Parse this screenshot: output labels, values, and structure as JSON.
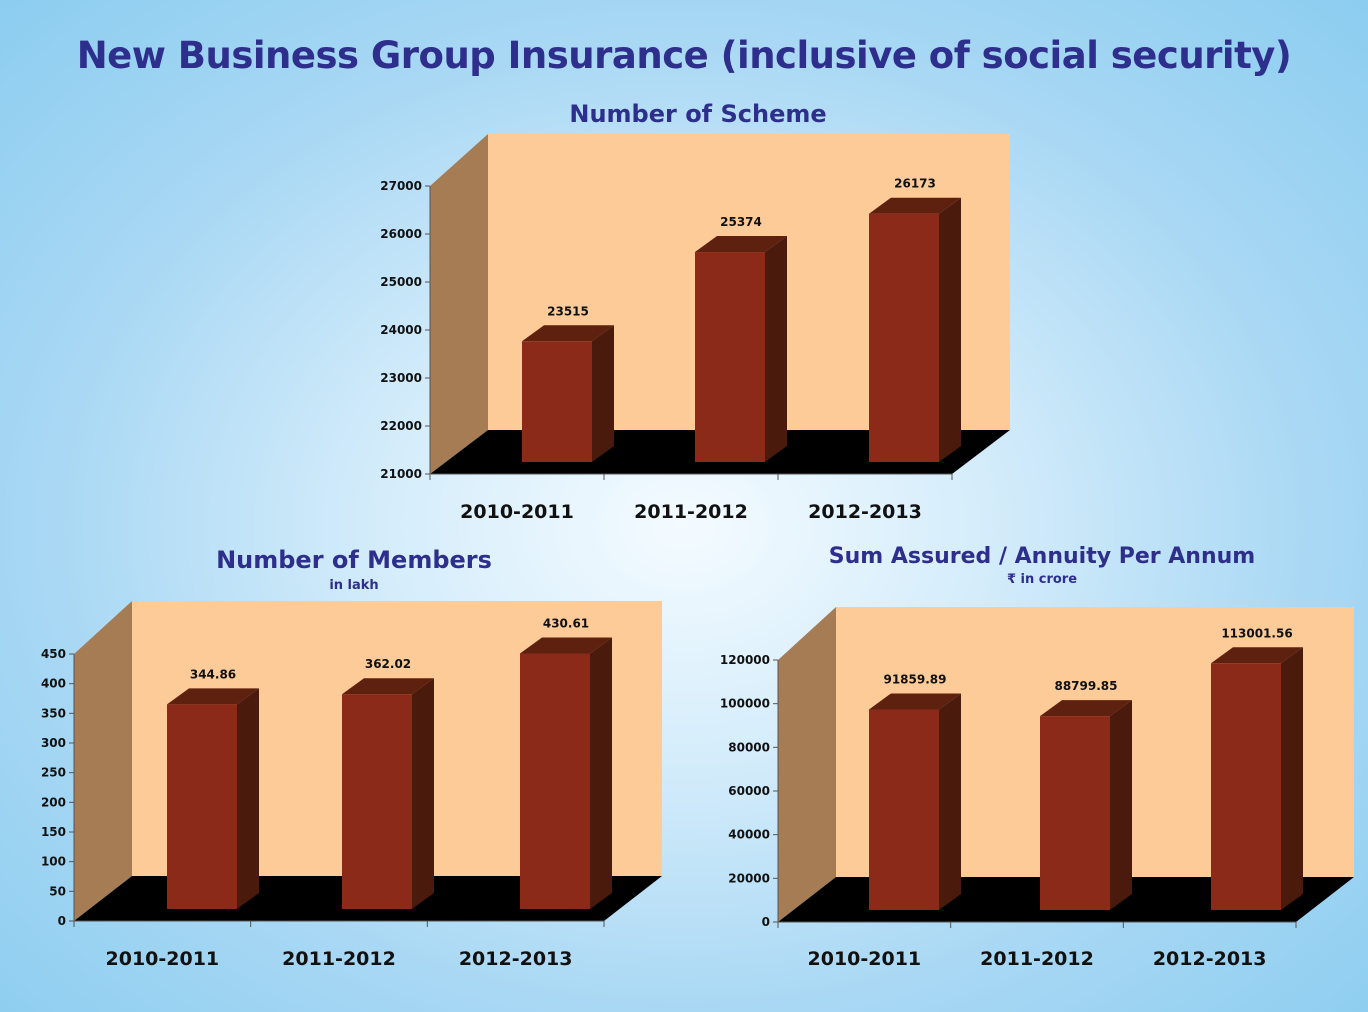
{
  "page_title": "New Business Group Insurance (inclusive of social security)",
  "colors": {
    "title": "#2e2e8c",
    "bar_front": "#8b2a18",
    "bar_side": "#4a1a0c",
    "bar_top": "#5e200f",
    "plot_back": "#fccb98",
    "plot_wall": "#a67c55",
    "plot_floor": "#000000"
  },
  "chart_data": [
    {
      "type": "bar",
      "title": "Number of Scheme",
      "subtitle": "",
      "categories": [
        "2010-2011",
        "2011-2012",
        "2012-2013"
      ],
      "values": [
        23515,
        25374,
        26173
      ],
      "value_labels": [
        "23515",
        "25374",
        "26173"
      ],
      "ylim": [
        21000,
        27000
      ],
      "yticks": [
        "21000",
        "22000",
        "23000",
        "24000",
        "25000",
        "26000",
        "27000"
      ],
      "xlabel": "",
      "ylabel": "",
      "grid": false,
      "legend": "none"
    },
    {
      "type": "bar",
      "title": "Number of Members",
      "subtitle": "in lakh",
      "categories": [
        "2010-2011",
        "2011-2012",
        "2012-2013"
      ],
      "values": [
        344.86,
        362.02,
        430.61
      ],
      "value_labels": [
        "344.86",
        "362.02",
        "430.61"
      ],
      "ylim": [
        0,
        450
      ],
      "yticks": [
        "0",
        "50",
        "100",
        "150",
        "200",
        "250",
        "300",
        "350",
        "400",
        "450"
      ],
      "xlabel": "",
      "ylabel": "",
      "grid": false,
      "legend": "none"
    },
    {
      "type": "bar",
      "title": "Sum Assured / Annuity Per Annum",
      "subtitle": "₹ in crore",
      "categories": [
        "2010-2011",
        "2011-2012",
        "2012-2013"
      ],
      "values": [
        91859.89,
        88799.85,
        113001.56
      ],
      "value_labels": [
        "91859.89",
        "88799.85",
        "113001.56"
      ],
      "ylim": [
        0,
        120000
      ],
      "yticks": [
        "0",
        "20000",
        "40000",
        "60000",
        "80000",
        "100000",
        "120000"
      ],
      "xlabel": "",
      "ylabel": "",
      "grid": false,
      "legend": "none"
    }
  ]
}
